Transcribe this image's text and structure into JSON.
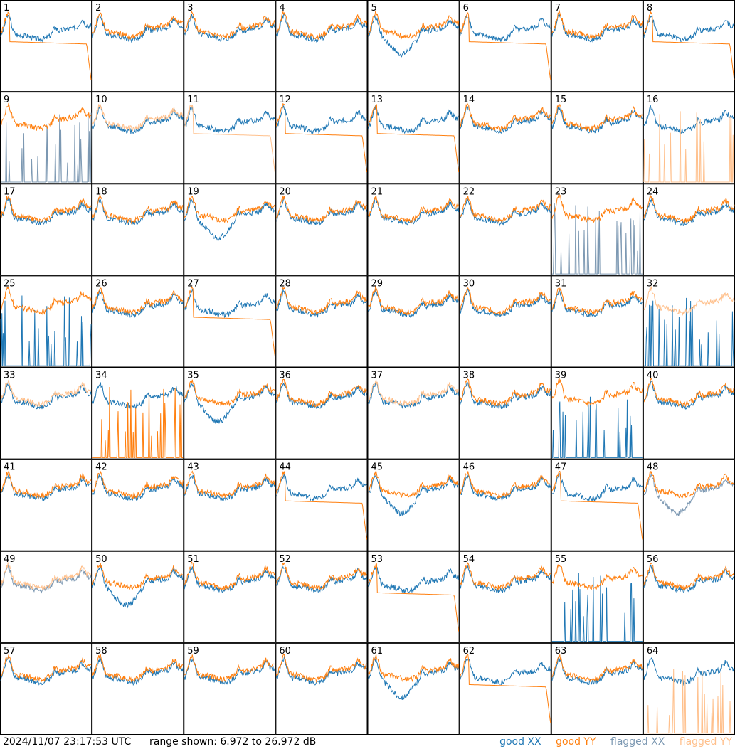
{
  "footer": {
    "timestamp": "2024/11/07 23:17:53 UTC",
    "range_text": "range shown: 6.972 to 26.972 dB",
    "legend": {
      "good_xx": "good XX",
      "good_yy": "good YY",
      "flagged_xx": "flagged XX",
      "flagged_yy": "flagged YY"
    }
  },
  "colors": {
    "good_xx": "#1f77b4",
    "good_yy": "#ff7f0e",
    "flagged_xx": "#7c98b2",
    "flagged_yy": "#ffc08c"
  },
  "chart_data": {
    "type": "line",
    "grid": "8x8 small multiples",
    "ylim": [
      6.972,
      26.972
    ],
    "yunit": "dB",
    "panels": [
      {
        "label": "1",
        "xx": "good",
        "yy": "good",
        "shape": "sag"
      },
      {
        "label": "2",
        "xx": "good",
        "yy": "good",
        "shape": "normal"
      },
      {
        "label": "3",
        "xx": "good",
        "yy": "good",
        "shape": "normal"
      },
      {
        "label": "4",
        "xx": "good",
        "yy": "good",
        "shape": "normal"
      },
      {
        "label": "5",
        "xx": "good",
        "yy": "good",
        "shape": "dipxx"
      },
      {
        "label": "6",
        "xx": "good",
        "yy": "good",
        "shape": "sag"
      },
      {
        "label": "7",
        "xx": "good",
        "yy": "good",
        "shape": "normal"
      },
      {
        "label": "8",
        "xx": "good",
        "yy": "good",
        "shape": "sag"
      },
      {
        "label": "9",
        "xx": "flagged",
        "yy": "good",
        "shape": "spikesxx"
      },
      {
        "label": "10",
        "xx": "good",
        "yy": "flagged",
        "shape": "normal"
      },
      {
        "label": "11",
        "xx": "good",
        "yy": "flagged",
        "shape": "sag"
      },
      {
        "label": "12",
        "xx": "good",
        "yy": "good",
        "shape": "sag"
      },
      {
        "label": "13",
        "xx": "good",
        "yy": "good",
        "shape": "sag"
      },
      {
        "label": "14",
        "xx": "good",
        "yy": "good",
        "shape": "normal"
      },
      {
        "label": "15",
        "xx": "good",
        "yy": "good",
        "shape": "normal"
      },
      {
        "label": "16",
        "xx": "good",
        "yy": "flagged",
        "shape": "spikesyy"
      },
      {
        "label": "17",
        "xx": "good",
        "yy": "good",
        "shape": "normal"
      },
      {
        "label": "18",
        "xx": "good",
        "yy": "good",
        "shape": "normal"
      },
      {
        "label": "19",
        "xx": "good",
        "yy": "good",
        "shape": "dipxx"
      },
      {
        "label": "20",
        "xx": "good",
        "yy": "good",
        "shape": "normal"
      },
      {
        "label": "21",
        "xx": "good",
        "yy": "good",
        "shape": "normal"
      },
      {
        "label": "22",
        "xx": "good",
        "yy": "good",
        "shape": "normal"
      },
      {
        "label": "23",
        "xx": "flagged",
        "yy": "good",
        "shape": "spikesxx"
      },
      {
        "label": "24",
        "xx": "good",
        "yy": "good",
        "shape": "normal"
      },
      {
        "label": "25",
        "xx": "good",
        "yy": "good",
        "shape": "spikesxx"
      },
      {
        "label": "26",
        "xx": "good",
        "yy": "good",
        "shape": "normal"
      },
      {
        "label": "27",
        "xx": "good",
        "yy": "good",
        "shape": "sag"
      },
      {
        "label": "28",
        "xx": "good",
        "yy": "good",
        "shape": "normal"
      },
      {
        "label": "29",
        "xx": "good",
        "yy": "good",
        "shape": "normal"
      },
      {
        "label": "30",
        "xx": "good",
        "yy": "good",
        "shape": "normal"
      },
      {
        "label": "31",
        "xx": "good",
        "yy": "good",
        "shape": "normal"
      },
      {
        "label": "32",
        "xx": "good",
        "yy": "flagged",
        "shape": "spikesxx"
      },
      {
        "label": "33",
        "xx": "good",
        "yy": "flagged",
        "shape": "normal"
      },
      {
        "label": "34",
        "xx": "good",
        "yy": "good",
        "shape": "spikesyy"
      },
      {
        "label": "35",
        "xx": "good",
        "yy": "good",
        "shape": "dipxx"
      },
      {
        "label": "36",
        "xx": "good",
        "yy": "good",
        "shape": "normal"
      },
      {
        "label": "37",
        "xx": "good",
        "yy": "flagged",
        "shape": "normal"
      },
      {
        "label": "38",
        "xx": "good",
        "yy": "good",
        "shape": "normal"
      },
      {
        "label": "39",
        "xx": "good",
        "yy": "good",
        "shape": "spikesxx"
      },
      {
        "label": "40",
        "xx": "good",
        "yy": "good",
        "shape": "normal"
      },
      {
        "label": "41",
        "xx": "good",
        "yy": "good",
        "shape": "normal"
      },
      {
        "label": "42",
        "xx": "good",
        "yy": "good",
        "shape": "normal"
      },
      {
        "label": "43",
        "xx": "good",
        "yy": "good",
        "shape": "normal"
      },
      {
        "label": "44",
        "xx": "good",
        "yy": "good",
        "shape": "sag"
      },
      {
        "label": "45",
        "xx": "good",
        "yy": "good",
        "shape": "dipxx"
      },
      {
        "label": "46",
        "xx": "good",
        "yy": "good",
        "shape": "normal"
      },
      {
        "label": "47",
        "xx": "good",
        "yy": "good",
        "shape": "sag"
      },
      {
        "label": "48",
        "xx": "flagged",
        "yy": "good",
        "shape": "dipxx"
      },
      {
        "label": "49",
        "xx": "flagged",
        "yy": "flagged",
        "shape": "normal"
      },
      {
        "label": "50",
        "xx": "good",
        "yy": "good",
        "shape": "dipxx"
      },
      {
        "label": "51",
        "xx": "good",
        "yy": "good",
        "shape": "normal"
      },
      {
        "label": "52",
        "xx": "good",
        "yy": "good",
        "shape": "normal"
      },
      {
        "label": "53",
        "xx": "good",
        "yy": "good",
        "shape": "sag"
      },
      {
        "label": "54",
        "xx": "good",
        "yy": "good",
        "shape": "normal"
      },
      {
        "label": "55",
        "xx": "good",
        "yy": "good",
        "shape": "spikesxx"
      },
      {
        "label": "56",
        "xx": "good",
        "yy": "good",
        "shape": "normal"
      },
      {
        "label": "57",
        "xx": "good",
        "yy": "good",
        "shape": "normal"
      },
      {
        "label": "58",
        "xx": "good",
        "yy": "good",
        "shape": "normal"
      },
      {
        "label": "59",
        "xx": "good",
        "yy": "good",
        "shape": "normal"
      },
      {
        "label": "60",
        "xx": "good",
        "yy": "good",
        "shape": "normal"
      },
      {
        "label": "61",
        "xx": "good",
        "yy": "good",
        "shape": "dipxx"
      },
      {
        "label": "62",
        "xx": "good",
        "yy": "good",
        "shape": "sag"
      },
      {
        "label": "63",
        "xx": "good",
        "yy": "good",
        "shape": "normal"
      },
      {
        "label": "64",
        "xx": "good",
        "yy": "flagged",
        "shape": "spikesyy"
      }
    ]
  }
}
